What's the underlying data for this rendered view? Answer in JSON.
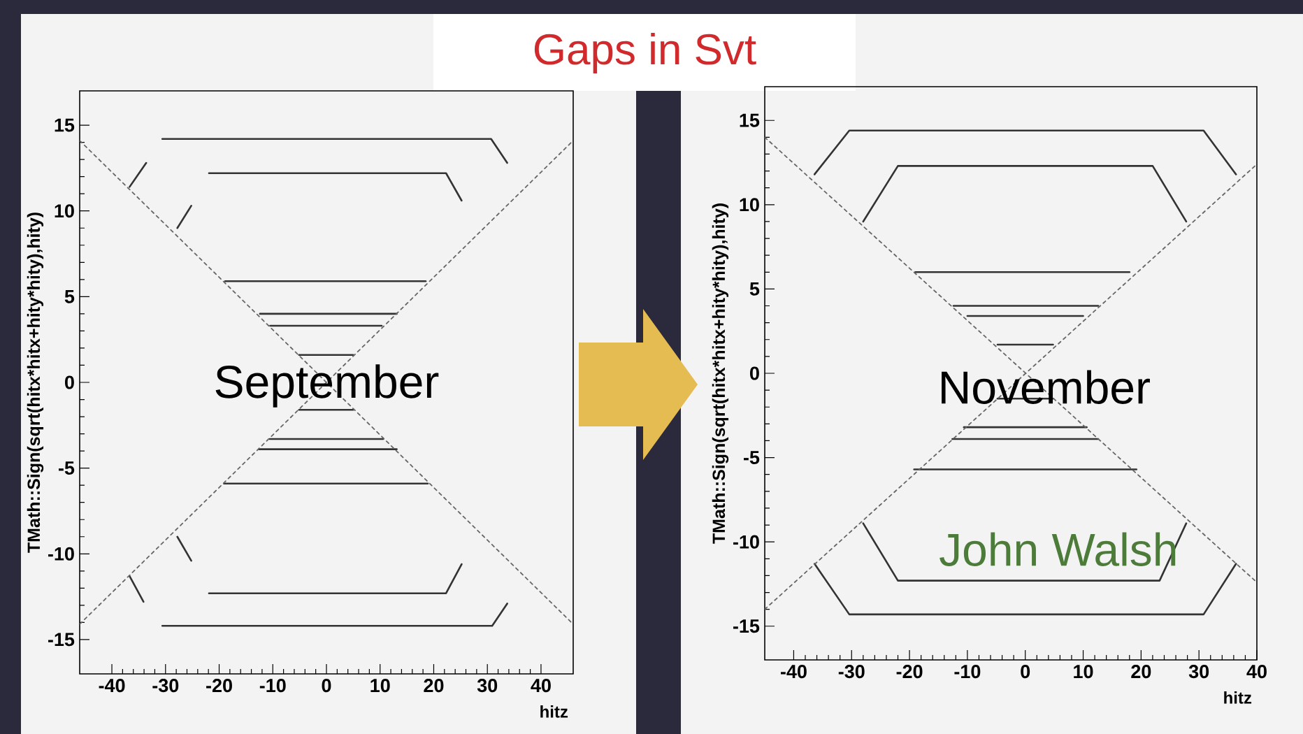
{
  "chart_data": [
    {
      "type": "line",
      "title": "Gaps in Svt",
      "xlabel": "hitz",
      "ylabel": "TMath::Sign(sqrt(hitx*hitx+hity*hity),hity)",
      "xlim": [
        -46,
        46
      ],
      "ylim": [
        -17,
        17
      ],
      "xticks": [
        -40,
        -30,
        -20,
        -10,
        0,
        10,
        20,
        30,
        40
      ],
      "yticks": [
        -15,
        -10,
        -5,
        0,
        5,
        10,
        15
      ],
      "marker": "none",
      "annotations": [
        "September"
      ],
      "series": [
        {
          "color": "#333333",
          "line_style": "solid",
          "x": [
            -30.6,
            30.7,
            33.7
          ],
          "values": [
            14.2,
            14.2,
            12.8
          ]
        },
        {
          "color": "#333333",
          "line_style": "solid",
          "x": [
            -21.9,
            22.3,
            25.2
          ],
          "values": [
            12.2,
            12.2,
            10.6
          ]
        },
        {
          "color": "#333333",
          "line_style": "solid",
          "x": [
            -33.6,
            -36.7
          ],
          "values": [
            12.8,
            11.4
          ]
        },
        {
          "color": "#333333",
          "line_style": "solid",
          "x": [
            -25.2,
            -27.8
          ],
          "values": [
            10.3,
            9.0
          ]
        },
        {
          "color": "#333333",
          "line_style": "solid",
          "x": [
            -18.9,
            18.5
          ],
          "values": [
            5.9,
            5.9
          ]
        },
        {
          "color": "#333333",
          "line_style": "solid",
          "x": [
            -12.4,
            13.1
          ],
          "values": [
            4.0,
            4.0
          ]
        },
        {
          "color": "#333333",
          "line_style": "solid",
          "x": [
            -10.5,
            10.3
          ],
          "values": [
            3.3,
            3.3
          ]
        },
        {
          "color": "#333333",
          "line_style": "solid",
          "x": [
            -5.1,
            5.0
          ],
          "values": [
            1.6,
            1.6
          ]
        },
        {
          "color": "#333333",
          "line_style": "solid",
          "x": [
            -5.1,
            5.0
          ],
          "values": [
            -1.6,
            -1.6
          ]
        },
        {
          "color": "#333333",
          "line_style": "solid",
          "x": [
            -10.6,
            10.6
          ],
          "values": [
            -3.3,
            -3.3
          ]
        },
        {
          "color": "#333333",
          "line_style": "solid",
          "x": [
            -12.6,
            13.1
          ],
          "values": [
            -3.9,
            -3.9
          ]
        },
        {
          "color": "#333333",
          "line_style": "solid",
          "x": [
            -19.1,
            18.9
          ],
          "values": [
            -5.9,
            -5.9
          ]
        },
        {
          "color": "#333333",
          "line_style": "solid",
          "x": [
            -21.9,
            22.3,
            25.2
          ],
          "values": [
            -12.3,
            -12.3,
            -10.6
          ]
        },
        {
          "color": "#333333",
          "line_style": "solid",
          "x": [
            -30.6,
            30.9,
            33.7
          ],
          "values": [
            -14.2,
            -14.2,
            -12.9
          ]
        },
        {
          "color": "#333333",
          "line_style": "solid",
          "x": [
            -27.8,
            -25.2
          ],
          "values": [
            -9.0,
            -10.4
          ]
        },
        {
          "color": "#333333",
          "line_style": "solid",
          "x": [
            -36.7,
            -34.1
          ],
          "values": [
            -11.3,
            -12.8
          ]
        },
        {
          "color": "#666666",
          "line_style": "dashed",
          "x": [
            -46,
            46
          ],
          "values": [
            14.1,
            -14.1
          ]
        },
        {
          "color": "#666666",
          "line_style": "dashed",
          "x": [
            -46,
            46
          ],
          "values": [
            -14.1,
            14.1
          ]
        }
      ]
    },
    {
      "type": "line",
      "xlabel": "hitz",
      "ylabel": "TMath::Sign(sqrt(hitx*hitx+hity*hity),hity)",
      "xlim": [
        -45,
        40
      ],
      "ylim": [
        -17,
        17
      ],
      "xticks": [
        -40,
        -30,
        -20,
        -10,
        0,
        10,
        20,
        30,
        40
      ],
      "yticks": [
        -15,
        -10,
        -5,
        0,
        5,
        10,
        15
      ],
      "marker": "none",
      "annotations": [
        "November",
        "John Walsh"
      ],
      "series": [
        {
          "color": "#333333",
          "line_style": "solid",
          "x": [
            -36.4,
            -30.4,
            30.8,
            36.4
          ],
          "values": [
            11.8,
            14.4,
            14.4,
            11.8
          ]
        },
        {
          "color": "#333333",
          "line_style": "solid",
          "x": [
            -28.0,
            -22.0,
            22.0,
            27.8
          ],
          "values": [
            9.0,
            12.3,
            12.3,
            9.0
          ]
        },
        {
          "color": "#333333",
          "line_style": "solid",
          "x": [
            -19.0,
            18.0
          ],
          "values": [
            6.0,
            6.0
          ]
        },
        {
          "color": "#333333",
          "line_style": "solid",
          "x": [
            -12.4,
            12.6
          ],
          "values": [
            4.0,
            4.0
          ]
        },
        {
          "color": "#333333",
          "line_style": "solid",
          "x": [
            -10.0,
            10.0
          ],
          "values": [
            3.4,
            3.4
          ]
        },
        {
          "color": "#333333",
          "line_style": "solid",
          "x": [
            -4.8,
            4.8
          ],
          "values": [
            1.7,
            1.7
          ]
        },
        {
          "color": "#333333",
          "line_style": "solid",
          "x": [
            -4.8,
            4.8
          ],
          "values": [
            -1.5,
            -1.5
          ]
        },
        {
          "color": "#333333",
          "line_style": "solid",
          "x": [
            -10.6,
            10.6
          ],
          "values": [
            -3.2,
            -3.2
          ]
        },
        {
          "color": "#333333",
          "line_style": "solid",
          "x": [
            -12.6,
            12.6
          ],
          "values": [
            -3.9,
            -3.9
          ]
        },
        {
          "color": "#333333",
          "line_style": "solid",
          "x": [
            -19.2,
            19.2
          ],
          "values": [
            -5.7,
            -5.7
          ]
        },
        {
          "color": "#333333",
          "line_style": "solid",
          "x": [
            -28.0,
            -22.0,
            23.2,
            27.8
          ],
          "values": [
            -8.9,
            -12.3,
            -12.3,
            -8.9
          ]
        },
        {
          "color": "#333333",
          "line_style": "solid",
          "x": [
            -36.4,
            -30.4,
            30.8,
            36.4
          ],
          "values": [
            -11.3,
            -14.3,
            -14.3,
            -11.3
          ]
        },
        {
          "color": "#666666",
          "line_style": "dashed",
          "x": [
            -45,
            40
          ],
          "values": [
            14.0,
            -12.4
          ]
        },
        {
          "color": "#666666",
          "line_style": "dashed",
          "x": [
            -45,
            40
          ],
          "values": [
            -14.0,
            12.4
          ]
        }
      ]
    }
  ]
}
